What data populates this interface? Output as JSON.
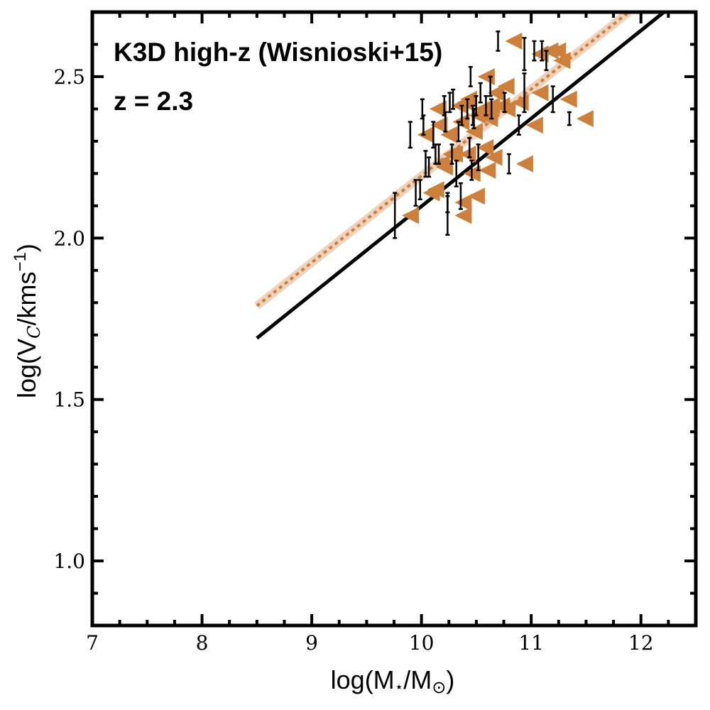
{
  "chart_data": {
    "type": "scatter",
    "annotations": [
      "K3D high-z (Wisnioski+15)",
      "z = 2.3"
    ],
    "xlabel_parts": [
      "log(M",
      "⋆",
      "/M",
      "⊙",
      ")"
    ],
    "ylabel_parts": [
      "log(V",
      "C",
      "/kms",
      "−1",
      ")"
    ],
    "xlim": [
      7,
      12.5
    ],
    "ylim": [
      0.8,
      2.7
    ],
    "xticks": [
      7,
      8,
      9,
      10,
      11,
      12
    ],
    "yticks": [
      {
        "value": 1.0,
        "label": "1.0"
      },
      1.5,
      {
        "value": 2.0,
        "label": "2.0"
      },
      2.5
    ],
    "xminorticks": [
      7.5,
      8.5,
      9.5,
      10.5,
      11.5,
      12.5,
      7.25,
      7.75,
      8.25,
      8.75,
      9.25,
      9.75,
      10.25,
      10.75,
      11.25,
      11.75,
      12.25
    ],
    "yminorticks": [
      0.9,
      1.1,
      1.2,
      1.3,
      1.4,
      1.6,
      1.7,
      1.8,
      1.9,
      2.1,
      2.2,
      2.3,
      2.4,
      2.6
    ],
    "series": [
      {
        "color": "#cd7f3c",
        "x": [
          9.9,
          10.04,
          10.15,
          10.16,
          10.09,
          10.13,
          10.18,
          10.21,
          10.25,
          10.27,
          10.3,
          10.35,
          10.36,
          10.38,
          10.38,
          10.4,
          10.42,
          10.43,
          10.46,
          10.48,
          10.5,
          10.51,
          10.56,
          10.59,
          10.58,
          10.6,
          10.61,
          10.62,
          10.64,
          10.66,
          10.68,
          10.73,
          10.77,
          10.78,
          10.84,
          10.9,
          10.94,
          11.03,
          11.08,
          11.08,
          11.17,
          11.24,
          11.28,
          11.34,
          11.49
        ],
        "values": [
          2.07,
          2.32,
          2.4,
          2.35,
          2.14,
          2.15,
          2.23,
          2.22,
          2.32,
          2.26,
          2.26,
          2.41,
          2.36,
          2.11,
          2.07,
          2.42,
          2.26,
          2.43,
          2.2,
          2.33,
          2.13,
          2.38,
          2.4,
          2.5,
          2.28,
          2.21,
          2.38,
          2.37,
          2.41,
          2.25,
          2.45,
          2.41,
          2.47,
          2.4,
          2.61,
          2.42,
          2.23,
          2.35,
          2.45,
          2.57,
          2.58,
          2.58,
          2.55,
          2.43,
          2.37
        ],
        "errors": [
          0.07,
          0.04,
          0.03,
          0.03,
          0.04,
          0.03,
          0.04,
          0.03,
          0.04,
          0.03,
          0.03,
          0.03,
          0.03,
          0.03,
          0.06,
          0.03,
          0.03,
          0.03,
          0.04,
          0.03,
          0.04,
          0.03,
          0.03,
          0.03,
          0.03,
          0.03,
          0.03,
          0.03,
          0.03,
          0.04,
          0.03,
          0.03,
          0.03,
          0.03,
          0.03,
          0.03,
          0.03,
          0.03,
          0.06,
          0.05,
          0.03,
          0.03,
          0.03,
          0.04,
          0.02
        ]
      }
    ],
    "lines": [
      {
        "color": "#000000",
        "x": [
          8.5,
          12.21
        ],
        "values": [
          1.69,
          2.7
        ]
      },
      {
        "color": "#cd7f3c",
        "dashed": true,
        "x": [
          8.5,
          11.89
        ],
        "values": [
          1.79,
          2.7
        ]
      }
    ]
  }
}
